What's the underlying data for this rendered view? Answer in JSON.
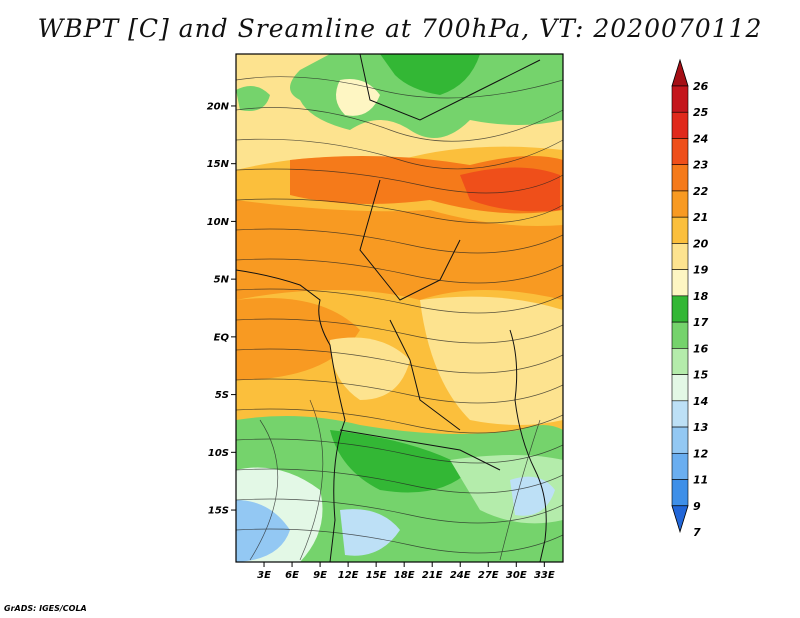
{
  "title": "WBPT [C] and Sreamline at 700hPa, VT: 2020070112",
  "credit": "GrADS: IGES/COLA",
  "map": {
    "lat_labels": [
      "20N",
      "15N",
      "10N",
      "5N",
      "EQ",
      "5S",
      "10S",
      "15S"
    ],
    "lon_labels": [
      "3E",
      "6E",
      "9E",
      "12E",
      "15E",
      "18E",
      "21E",
      "24E",
      "27E",
      "30E",
      "33E"
    ],
    "extent": {
      "lon_min": 0,
      "lon_max": 35,
      "lat_min": -19.5,
      "lat_max": 24.5
    }
  },
  "colorbar": {
    "levels": [
      "26",
      "25",
      "24",
      "23",
      "22",
      "21",
      "20",
      "19",
      "18",
      "17",
      "16",
      "15",
      "14",
      "13",
      "12",
      "11",
      "9",
      "7"
    ],
    "colors": [
      "#a50f15",
      "#c4161c",
      "#e0291b",
      "#ef4f1a",
      "#f57a1a",
      "#f89a22",
      "#fbbf3c",
      "#fde38f",
      "#fef6c3",
      "#33b735",
      "#75d36c",
      "#b4ecab",
      "#e3f8e6",
      "#bde0f6",
      "#93c8f3",
      "#6aaef0",
      "#3e8fe8",
      "#2166d8"
    ]
  }
}
